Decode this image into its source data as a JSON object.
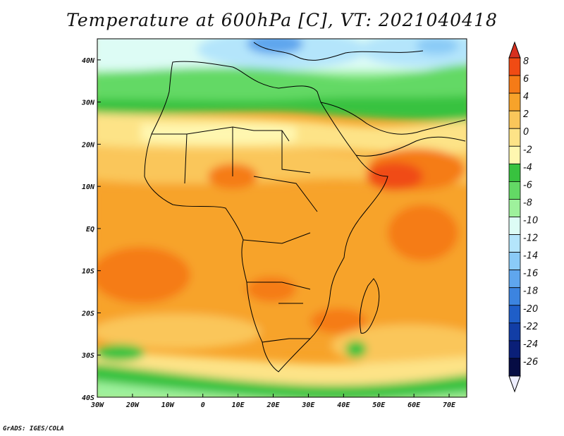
{
  "title": "Temperature at 600hPa [C], VT: 2021040418",
  "credit": "GrADS: IGES/COLA",
  "lat_ticks": [
    "40N",
    "30N",
    "20N",
    "10N",
    "EQ",
    "10S",
    "20S",
    "30S",
    "40S"
  ],
  "lon_ticks": [
    "30W",
    "20W",
    "10W",
    "0",
    "10E",
    "20E",
    "30E",
    "40E",
    "50E",
    "60E",
    "70E"
  ],
  "map_extent": {
    "lon": [
      -30,
      75
    ],
    "lat": [
      -40,
      45
    ]
  },
  "colorbar": {
    "labels": [
      "8",
      "6",
      "4",
      "2",
      "0",
      "-2",
      "-4",
      "-6",
      "-8",
      "-10",
      "-12",
      "-14",
      "-16",
      "-18",
      "-20",
      "-22",
      "-24",
      "-26"
    ],
    "colors": [
      "#d7301f",
      "#f04b14",
      "#f57b17",
      "#f7a32a",
      "#fac65a",
      "#fde387",
      "#fff7b0",
      "#38c23f",
      "#63d965",
      "#9ef19c",
      "#ddfcf5",
      "#b4e5fb",
      "#8acbf7",
      "#5fa6ee",
      "#3c84e0",
      "#1f5ec8",
      "#123ea6",
      "#0a1f78",
      "#060c44",
      "#eeeeff"
    ]
  }
}
